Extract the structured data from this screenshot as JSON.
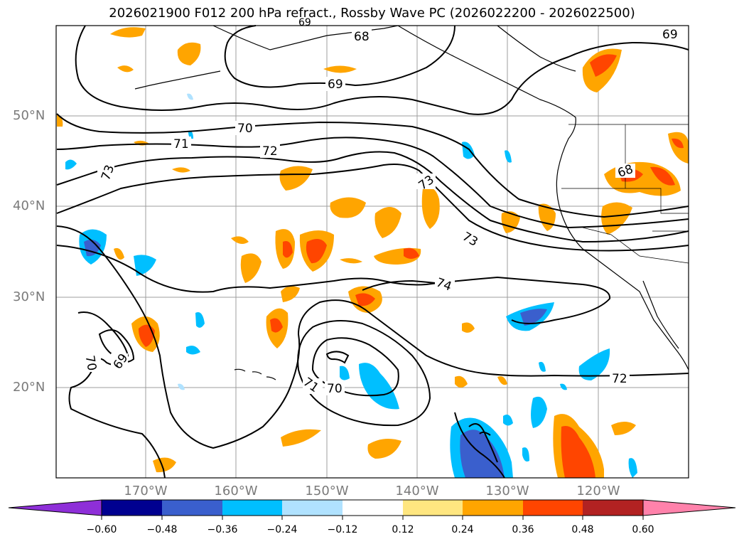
{
  "title": "2026021900 F012 200 hPa refract., Rossby Wave PC (2026022200 - 2026022500)",
  "map": {
    "lat_labels": [
      "50°N",
      "40°N",
      "30°N",
      "20°N"
    ],
    "lon_labels": [
      "170°W",
      "160°W",
      "150°W",
      "140°W",
      "130°W",
      "120°W"
    ],
    "contour_labels": [
      "68",
      "69",
      "69",
      "70",
      "71",
      "72",
      "73",
      "73",
      "73",
      "74",
      "70",
      "69",
      "71",
      "70",
      "72",
      "68",
      "69"
    ]
  },
  "colorbar": {
    "ticks": [
      "−0.60",
      "−0.48",
      "−0.36",
      "−0.24",
      "−0.12",
      "0.12",
      "0.24",
      "0.36",
      "0.48",
      "0.60"
    ],
    "colors": [
      "#8e2fd8",
      "#000090",
      "#3a5fcd",
      "#00bfff",
      "#b0e2ff",
      "#ffffff",
      "#ffe680",
      "#ffa500",
      "#ff4500",
      "#b22222",
      "#ff82ab"
    ]
  }
}
